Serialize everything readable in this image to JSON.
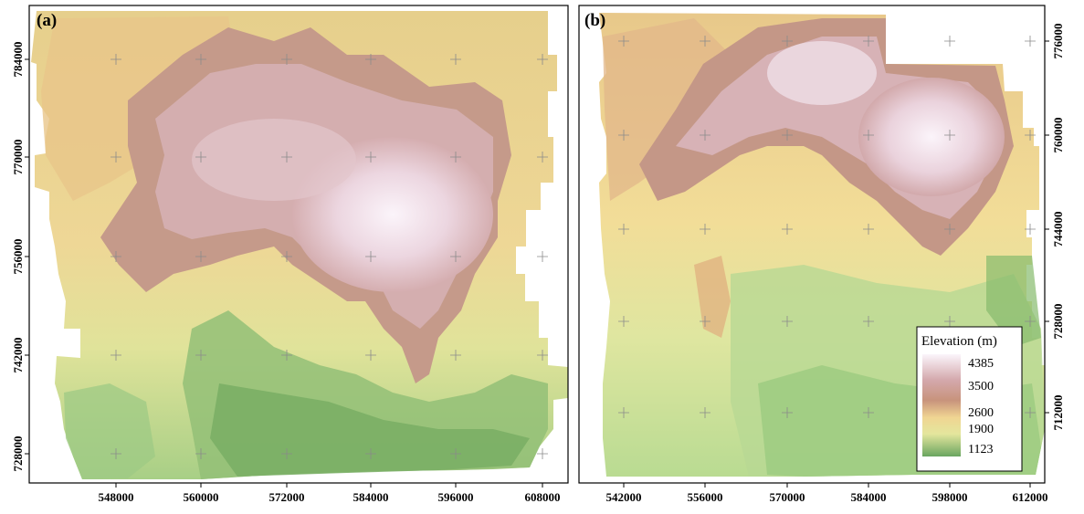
{
  "panels": [
    {
      "label": "(a)",
      "x_ticks": [
        "548000",
        "560000",
        "572000",
        "584000",
        "596000",
        "608000"
      ],
      "y_ticks": [
        "784000",
        "770000",
        "756000",
        "742000",
        "728000"
      ],
      "y_axis_side": "left"
    },
    {
      "label": "(b)",
      "x_ticks": [
        "542000",
        "556000",
        "570000",
        "584000",
        "598000",
        "612000"
      ],
      "y_ticks": [
        "776000",
        "760000",
        "744000",
        "728000",
        "712000"
      ],
      "y_axis_side": "right"
    }
  ],
  "legend": {
    "title": "Elevation (m)",
    "placement": "bottom-right of panel (b)",
    "values": [
      "4385",
      "3500",
      "2600",
      "1900",
      "1123"
    ],
    "colors": [
      "#fbf5fb",
      "#c79a92",
      "#f1d894",
      "#cfe08f",
      "#6aa560"
    ]
  },
  "colors": {
    "high": "#f7eef5",
    "upper": "#d8b3b7",
    "mid_upper": "#c08a72",
    "mid": "#e9c98a",
    "low_mid": "#f2e6a0",
    "low": "#bfdc9a",
    "lowest": "#7fb46a"
  }
}
